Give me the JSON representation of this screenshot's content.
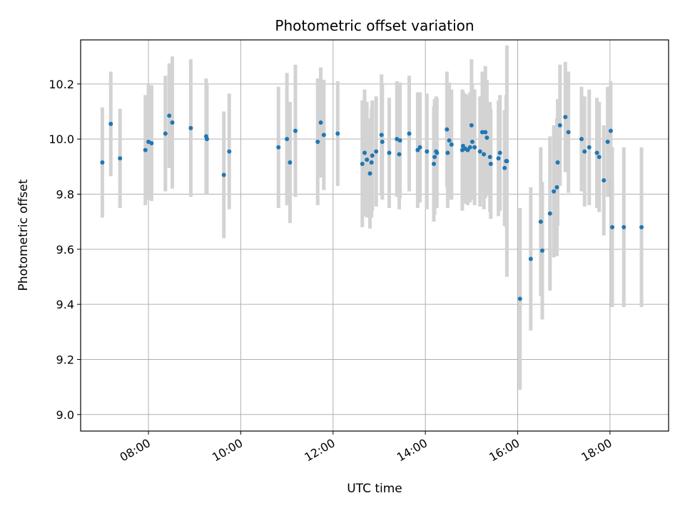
{
  "chart_data": {
    "type": "scatter",
    "title": "Photometric offset variation",
    "xlabel": "UTC time",
    "ylabel": "Photometric offset",
    "x_ticks": [
      "08:00",
      "10:00",
      "12:00",
      "14:00",
      "16:00",
      "18:00"
    ],
    "y_ticks": [
      "9.0",
      "9.2",
      "9.4",
      "9.6",
      "9.8",
      "10.0",
      "10.2"
    ],
    "x_range_hours": [
      6.53,
      19.27
    ],
    "ylim": [
      8.94,
      10.36
    ],
    "grid": true,
    "colors": {
      "points": "#1f77b4",
      "errorbars": "#d3d3d3",
      "grid": "#b0b0b0"
    },
    "series": [
      {
        "x_time": [
          "07:00",
          "07:11",
          "07:23",
          "07:56",
          "08:00",
          "08:04",
          "08:22",
          "08:27",
          "08:31",
          "08:55",
          "09:15",
          "09:16",
          "09:38",
          "09:45",
          "10:49",
          "11:00",
          "11:04",
          "11:11",
          "11:40",
          "11:44",
          "11:48",
          "12:06",
          "12:38",
          "12:41",
          "12:44",
          "12:48",
          "12:50",
          "12:51",
          "12:56",
          "13:03",
          "13:04",
          "13:13",
          "13:23",
          "13:26",
          "13:27",
          "13:39",
          "13:50",
          "13:53",
          "14:02",
          "14:11",
          "14:12",
          "14:14",
          "14:15",
          "14:28",
          "14:29",
          "14:31",
          "14:34",
          "14:48",
          "14:49",
          "14:52",
          "14:55",
          "14:58",
          "15:00",
          "15:01",
          "15:04",
          "15:11",
          "15:14",
          "15:16",
          "15:18",
          "15:20",
          "15:24",
          "15:25",
          "15:35",
          "15:37",
          "15:43",
          "15:45",
          "15:46",
          "16:03",
          "16:17",
          "16:30",
          "16:32",
          "16:42",
          "16:47",
          "16:51",
          "16:52",
          "16:55",
          "17:02",
          "17:06",
          "17:23",
          "17:27",
          "17:33",
          "17:43",
          "17:46",
          "17:52",
          "17:57",
          "18:01",
          "18:03",
          "18:18",
          "18:41"
        ],
        "y": [
          9.915,
          10.055,
          9.93,
          9.96,
          9.99,
          9.985,
          10.02,
          10.085,
          10.06,
          10.04,
          10.01,
          10.0,
          9.87,
          9.955,
          9.97,
          10.0,
          9.915,
          10.03,
          9.99,
          10.06,
          10.015,
          10.02,
          9.91,
          9.95,
          9.925,
          9.875,
          9.915,
          9.94,
          9.955,
          10.015,
          9.99,
          9.95,
          10.0,
          9.945,
          9.995,
          10.02,
          9.96,
          9.97,
          9.955,
          9.91,
          9.935,
          9.955,
          9.95,
          10.035,
          9.95,
          9.995,
          9.98,
          9.96,
          9.975,
          9.965,
          9.96,
          9.97,
          10.05,
          9.99,
          9.97,
          9.955,
          10.025,
          9.945,
          10.025,
          10.005,
          9.935,
          9.91,
          9.93,
          9.95,
          9.895,
          9.92,
          9.92,
          9.42,
          9.565,
          9.7,
          9.595,
          9.73,
          9.81,
          9.825,
          9.915,
          10.05,
          10.08,
          10.025,
          10.0,
          9.955,
          9.97,
          9.95,
          9.935,
          9.85,
          9.99,
          10.03,
          9.68,
          9.68,
          9.68
        ],
        "err": [
          0.2,
          0.19,
          0.18,
          0.2,
          0.21,
          0.21,
          0.21,
          0.19,
          0.24,
          0.25,
          0.21,
          0.2,
          0.23,
          0.21,
          0.22,
          0.24,
          0.22,
          0.24,
          0.23,
          0.2,
          0.2,
          0.19,
          0.23,
          0.23,
          0.21,
          0.2,
          0.2,
          0.2,
          0.2,
          0.22,
          0.21,
          0.2,
          0.21,
          0.2,
          0.21,
          0.21,
          0.21,
          0.2,
          0.21,
          0.21,
          0.21,
          0.2,
          0.2,
          0.21,
          0.2,
          0.21,
          0.2,
          0.22,
          0.2,
          0.2,
          0.2,
          0.2,
          0.24,
          0.21,
          0.21,
          0.2,
          0.22,
          0.2,
          0.24,
          0.21,
          0.2,
          0.2,
          0.21,
          0.21,
          0.21,
          0.24,
          0.42,
          0.33,
          0.26,
          0.27,
          0.25,
          0.28,
          0.24,
          0.25,
          0.23,
          0.22,
          0.2,
          0.22,
          0.19,
          0.2,
          0.21,
          0.2,
          0.2,
          0.2,
          0.2,
          0.18,
          0.29,
          0.29,
          0.29
        ]
      }
    ]
  }
}
